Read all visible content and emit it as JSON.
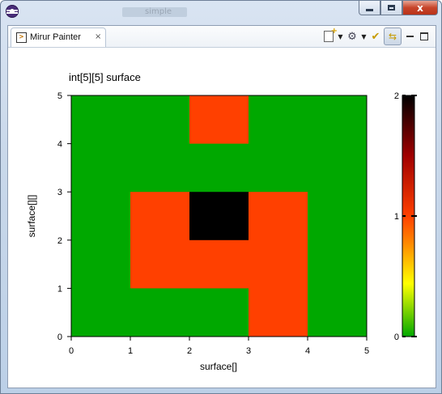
{
  "window": {
    "title_text": "",
    "ghost_title": "simple",
    "minimize_label": "",
    "maximize_label": "",
    "close_label": "x"
  },
  "tab": {
    "label": "Mirur Painter",
    "icon_glyph": ">",
    "close_glyph": "×"
  },
  "toolbar": {
    "icons": [
      "new-document-icon",
      "dropdown-caret",
      "gear-icon",
      "dropdown-caret",
      "check-icon",
      "sync-icon",
      "minimize-icon",
      "maximize-icon"
    ]
  },
  "colors": {
    "green": "#00a800",
    "orange": "#ff4000",
    "black": "#000000"
  },
  "chart_data": {
    "type": "heatmap",
    "title": "int[5][5] surface",
    "xlabel": "surface[]",
    "ylabel": "surface[][]",
    "xlim": [
      0,
      5
    ],
    "ylim": [
      0,
      5
    ],
    "x_ticks": [
      "0",
      "1",
      "2",
      "3",
      "4",
      "5"
    ],
    "y_ticks": [
      "0",
      "1",
      "2",
      "3",
      "4",
      "5"
    ],
    "rows_top_to_bottom": [
      [
        0,
        0,
        1,
        0,
        0
      ],
      [
        0,
        0,
        0,
        0,
        0
      ],
      [
        0,
        1,
        2,
        1,
        0
      ],
      [
        0,
        1,
        1,
        1,
        0
      ],
      [
        0,
        0,
        0,
        1,
        0
      ]
    ],
    "colorbar": {
      "ticks": [
        "0",
        "1",
        "2"
      ],
      "range": [
        0,
        2
      ],
      "gradient": [
        "#00a800",
        "#ffff00",
        "#ff8000",
        "#ff4000",
        "#a00000",
        "#000000"
      ]
    }
  }
}
